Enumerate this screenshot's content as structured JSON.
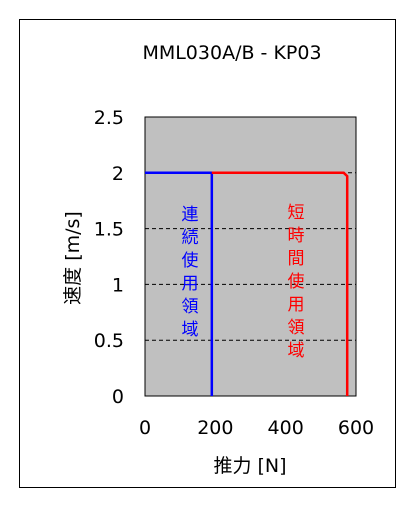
{
  "chart_data": {
    "type": "line",
    "title": "MML030A/B - KP03",
    "xlabel": "推力 [N]",
    "ylabel": "速度 [m/s]",
    "xlim": [
      0,
      600
    ],
    "ylim": [
      0,
      2.5
    ],
    "x_ticks": [
      "0",
      "200",
      "400",
      "600"
    ],
    "y_ticks": [
      "0",
      "0.5",
      "1",
      "1.5",
      "2",
      "2.5"
    ],
    "grid": "horizontal-dashed",
    "series": [
      {
        "name": "連続使用領域",
        "color": "#0000ff",
        "points": [
          [
            0,
            2
          ],
          [
            190,
            2
          ],
          [
            190,
            0
          ]
        ]
      },
      {
        "name": "短時間使用領域",
        "color": "#ff0000",
        "points": [
          [
            190,
            2
          ],
          [
            565,
            2
          ],
          [
            575,
            1.97
          ],
          [
            575,
            0
          ]
        ]
      }
    ],
    "plot_background": "#c0c0c0"
  }
}
